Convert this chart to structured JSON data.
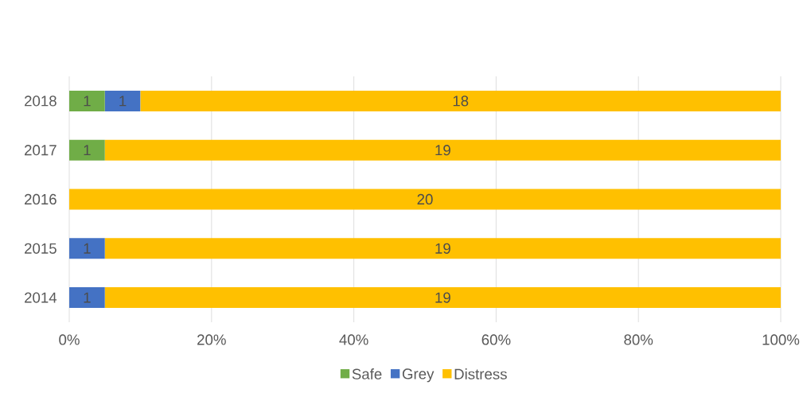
{
  "chart_data": {
    "type": "bar",
    "orientation": "horizontal",
    "stacked": true,
    "categories": [
      "2018",
      "2017",
      "2016",
      "2015",
      "2014"
    ],
    "series": [
      {
        "name": "Safe",
        "color": "#70ad47",
        "values": [
          5,
          5,
          null,
          null,
          null
        ]
      },
      {
        "name": "Grey",
        "color": "#4472c4",
        "values": [
          5,
          null,
          null,
          5,
          5
        ]
      },
      {
        "name": "Distress",
        "color": "#ffc000",
        "values": [
          90,
          95,
          100,
          95,
          95
        ]
      }
    ],
    "annotations": [
      "1",
      "1",
      "18",
      "1",
      "19",
      "20",
      "1",
      "19",
      "1",
      "19"
    ],
    "xlim": [
      0,
      100
    ],
    "xticks": [
      {
        "value": 0,
        "label": "0%"
      },
      {
        "value": 20,
        "label": "20%"
      },
      {
        "value": 40,
        "label": "40%"
      },
      {
        "value": 60,
        "label": "60%"
      },
      {
        "value": 80,
        "label": "80%"
      },
      {
        "value": 100,
        "label": "100%"
      }
    ],
    "grid": "x",
    "legend": "bottom"
  }
}
